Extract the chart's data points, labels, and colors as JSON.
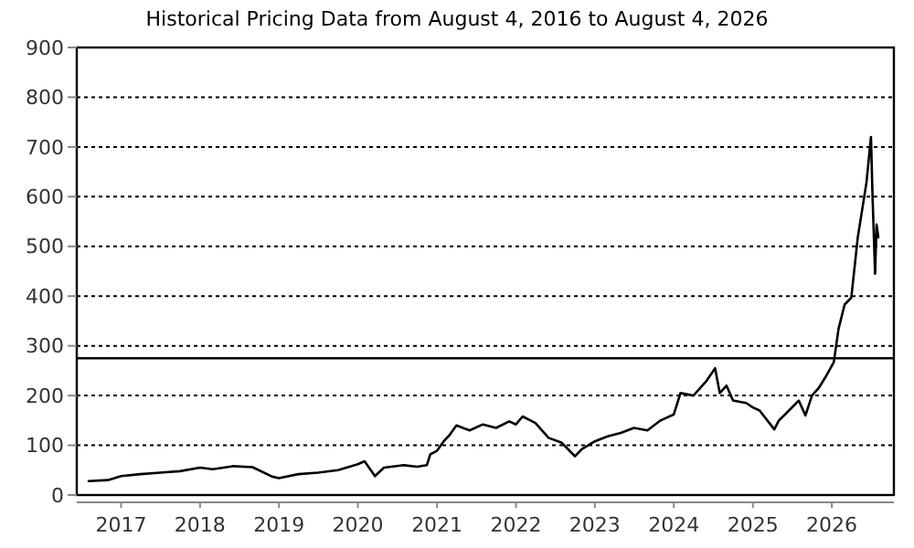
{
  "chart_data": {
    "type": "line",
    "title": "Historical Pricing Data from August 4, 2016 to August 4, 2026",
    "x": [
      "2016-08-04",
      "2016-11",
      "2017-01",
      "2017-04",
      "2017-07",
      "2017-10",
      "2018-01",
      "2018-03",
      "2018-06",
      "2018-09",
      "2018-12",
      "2019-01",
      "2019-04",
      "2019-07",
      "2019-10",
      "2020-01",
      "2020-02",
      "2020-03-20",
      "2020-05",
      "2020-08",
      "2020-10",
      "2020-11-15",
      "2020-12",
      "2021-01",
      "2021-02",
      "2021-03",
      "2021-04",
      "2021-06",
      "2021-08",
      "2021-10",
      "2021-12",
      "2022-01",
      "2022-02",
      "2022-04",
      "2022-06",
      "2022-08",
      "2022-10",
      "2022-11",
      "2023-01",
      "2023-03",
      "2023-05",
      "2023-07",
      "2023-09",
      "2023-11",
      "2024-01",
      "2024-02",
      "2024-04",
      "2024-06",
      "2024-07-10",
      "2024-08",
      "2024-09",
      "2024-10",
      "2024-12",
      "2025-01",
      "2025-02",
      "2025-04-10",
      "2025-05",
      "2025-06",
      "2025-08",
      "2025-09",
      "2025-10",
      "2025-11",
      "2025-12",
      "2026-01-10",
      "2026-02",
      "2026-03",
      "2026-04",
      "2026-05",
      "2026-06-10",
      "2026-07-01",
      "2026-07-08",
      "2026-07-20",
      "2026-07-27",
      "2026-08-04"
    ],
    "series": [
      {
        "color": "#000000",
        "values": [
          28,
          30,
          38,
          42,
          45,
          48,
          55,
          52,
          58,
          56,
          37,
          34,
          42,
          45,
          50,
          62,
          68,
          38,
          55,
          60,
          57,
          60,
          82,
          89,
          108,
          121,
          140,
          130,
          142,
          135,
          148,
          142,
          158,
          145,
          115,
          105,
          78,
          92,
          108,
          118,
          125,
          135,
          130,
          150,
          162,
          205,
          200,
          230,
          255,
          205,
          220,
          190,
          185,
          176,
          170,
          132,
          150,
          163,
          190,
          160,
          200,
          215,
          236,
          267,
          334,
          383,
          397,
          518,
          628,
          720,
          604,
          445,
          544,
          518
        ]
      }
    ],
    "xlim": [
      "2016-06-10",
      "2026-10-15"
    ],
    "xticks": [
      "2017",
      "2018",
      "2019",
      "2020",
      "2021",
      "2022",
      "2023",
      "2024",
      "2025",
      "2026"
    ],
    "ylim": [
      0,
      900
    ],
    "yticks": [
      0,
      100,
      200,
      300,
      400,
      500,
      600,
      700,
      800,
      900
    ],
    "grid": "y",
    "marker": "none",
    "line_style": "solid",
    "ref_lines": [
      {
        "axis": "y",
        "value": 275,
        "color": "#000000"
      }
    ]
  }
}
